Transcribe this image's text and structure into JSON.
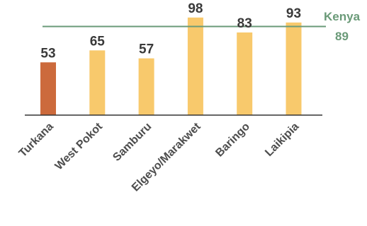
{
  "chart_data": {
    "type": "bar",
    "categories": [
      "Turkana",
      "West Pokot",
      "Samburu",
      "Elgeyo/Marakwet",
      "Baringo",
      "Laikipia"
    ],
    "values": [
      53,
      65,
      57,
      98,
      83,
      93
    ],
    "value_labels": [
      "53",
      "65",
      "57",
      "98",
      "83",
      "93"
    ],
    "ylim": [
      0,
      100
    ],
    "grid": false,
    "reference_line": {
      "name": "Kenya",
      "value": 89,
      "value_label": "89"
    },
    "colors": {
      "highlight": "#cc6a3c",
      "bar": "#f8c96c",
      "reference": "#6a9a78",
      "axis": "#333333"
    },
    "highlight_index": 0
  }
}
